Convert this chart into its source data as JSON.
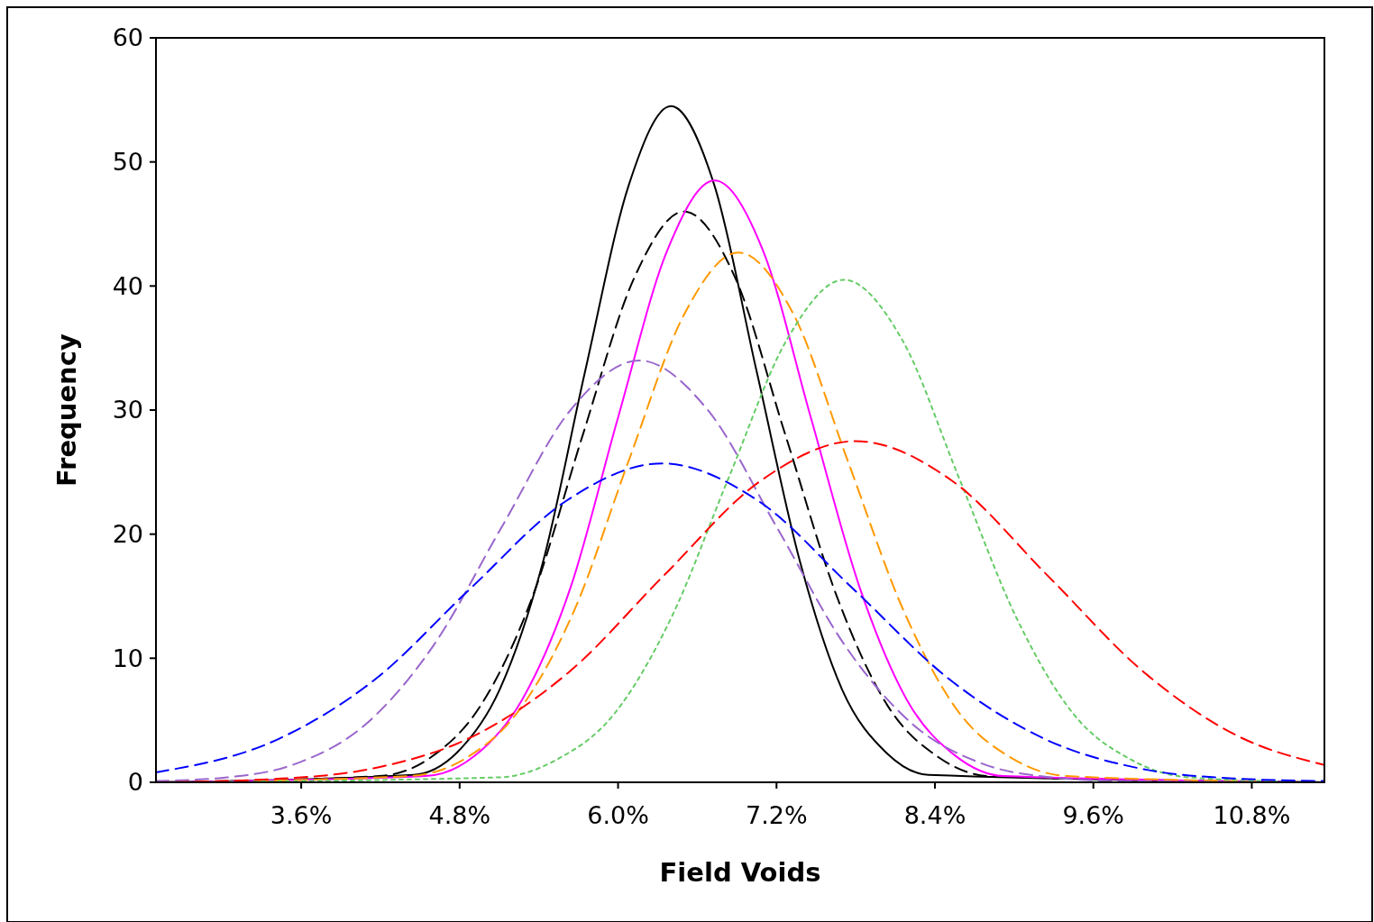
{
  "chart_data": {
    "type": "line",
    "xlabel": "Field Voids",
    "ylabel": "Frequency",
    "xlim": [
      2.5,
      11.35
    ],
    "ylim": [
      0,
      60
    ],
    "xticks": [
      {
        "value": 3.6,
        "label": "3.6%"
      },
      {
        "value": 4.8,
        "label": "4.8%"
      },
      {
        "value": 6.0,
        "label": "6.0%"
      },
      {
        "value": 7.2,
        "label": "7.2%"
      },
      {
        "value": 8.4,
        "label": "8.4%"
      },
      {
        "value": 9.6,
        "label": "9.6%"
      },
      {
        "value": 10.8,
        "label": "10.8%"
      }
    ],
    "yticks": [
      0,
      10,
      20,
      30,
      40,
      50,
      60
    ],
    "grid": false,
    "marker": "none",
    "series": [
      {
        "color": "#000000",
        "line_style": "solid",
        "x": [
          2.5,
          4.45,
          4.78,
          5.1,
          5.43,
          5.75,
          6.08,
          6.4,
          6.73,
          7.05,
          7.38,
          7.7,
          8.03,
          8.35,
          11.35
        ],
        "values": [
          0,
          0.6,
          2.4,
          7.4,
          17.7,
          33.1,
          48.1,
          54.5,
          48.1,
          33.1,
          17.7,
          7.4,
          2.4,
          0.6,
          0
        ]
      },
      {
        "color": "#000000",
        "line_style": "dashed",
        "x": [
          2.5,
          4.19,
          4.58,
          4.96,
          5.35,
          5.73,
          6.12,
          6.5,
          6.89,
          7.27,
          7.66,
          8.04,
          8.43,
          8.81,
          11.35
        ],
        "values": [
          0,
          0.5,
          2.0,
          6.2,
          14.9,
          27.9,
          40.6,
          46,
          40.6,
          27.9,
          14.9,
          6.2,
          2.0,
          0.5,
          0
        ]
      },
      {
        "color": "#ff00ff",
        "line_style": "solid",
        "x": [
          2.5,
          4.54,
          4.91,
          5.27,
          5.64,
          6.0,
          6.37,
          6.73,
          7.1,
          7.46,
          7.83,
          8.19,
          8.56,
          8.92,
          11.35
        ],
        "values": [
          0,
          0.5,
          2.1,
          6.6,
          15.7,
          29.4,
          42.8,
          48.5,
          42.8,
          29.4,
          15.7,
          6.6,
          2.1,
          0.5,
          0
        ]
      },
      {
        "color": "#ff9900",
        "line_style": "dashed",
        "x": [
          2.5,
          4.42,
          4.84,
          5.25,
          5.67,
          6.08,
          6.5,
          6.91,
          7.33,
          7.74,
          8.16,
          8.57,
          8.99,
          9.4,
          11.35
        ],
        "values": [
          0,
          0.5,
          1.9,
          5.8,
          13.9,
          25.9,
          37.7,
          42.7,
          37.7,
          25.9,
          13.9,
          5.8,
          1.9,
          0.5,
          0
        ]
      },
      {
        "color": "#66cc66",
        "line_style": "dotted",
        "x": [
          2.5,
          5.1,
          5.53,
          5.97,
          6.4,
          6.84,
          7.28,
          7.71,
          8.15,
          8.58,
          9.02,
          9.45,
          9.89,
          10.32,
          11.35
        ],
        "values": [
          0,
          0.4,
          1.8,
          5.5,
          13.2,
          24.6,
          35.7,
          40.5,
          35.7,
          24.6,
          13.2,
          5.5,
          1.8,
          0.4,
          0
        ]
      },
      {
        "color": "#9966cc",
        "line_style": "dashed",
        "x": [
          2.5,
          3.04,
          3.56,
          4.08,
          4.6,
          5.12,
          5.64,
          6.16,
          6.68,
          7.2,
          7.72,
          8.24,
          8.76,
          9.28,
          9.8,
          11.35
        ],
        "values": [
          0.1,
          0.4,
          1.5,
          4.6,
          11.0,
          20.6,
          30.0,
          34,
          30.0,
          20.6,
          11.0,
          4.6,
          1.5,
          0.4,
          0.1,
          0
        ]
      },
      {
        "color": "#0000ff",
        "line_style": "dashed",
        "x": [
          2.5,
          3.43,
          4.16,
          4.88,
          5.61,
          6.33,
          7.06,
          7.78,
          8.51,
          9.23,
          9.96,
          10.68,
          11.35
        ],
        "values": [
          0.8,
          3.5,
          8.3,
          15.6,
          22.7,
          25.7,
          22.7,
          15.6,
          8.3,
          3.5,
          1.1,
          0.3,
          0.1
        ]
      },
      {
        "color": "#ff0000",
        "line_style": "dashed",
        "x": [
          2.5,
          3.45,
          4.18,
          4.9,
          5.63,
          6.35,
          7.08,
          7.8,
          8.53,
          9.25,
          9.98,
          10.7,
          11.35
        ],
        "values": [
          0,
          0.3,
          1.2,
          3.7,
          8.9,
          16.7,
          24.3,
          27.5,
          24.3,
          16.7,
          8.9,
          3.7,
          1.4
        ]
      }
    ]
  }
}
